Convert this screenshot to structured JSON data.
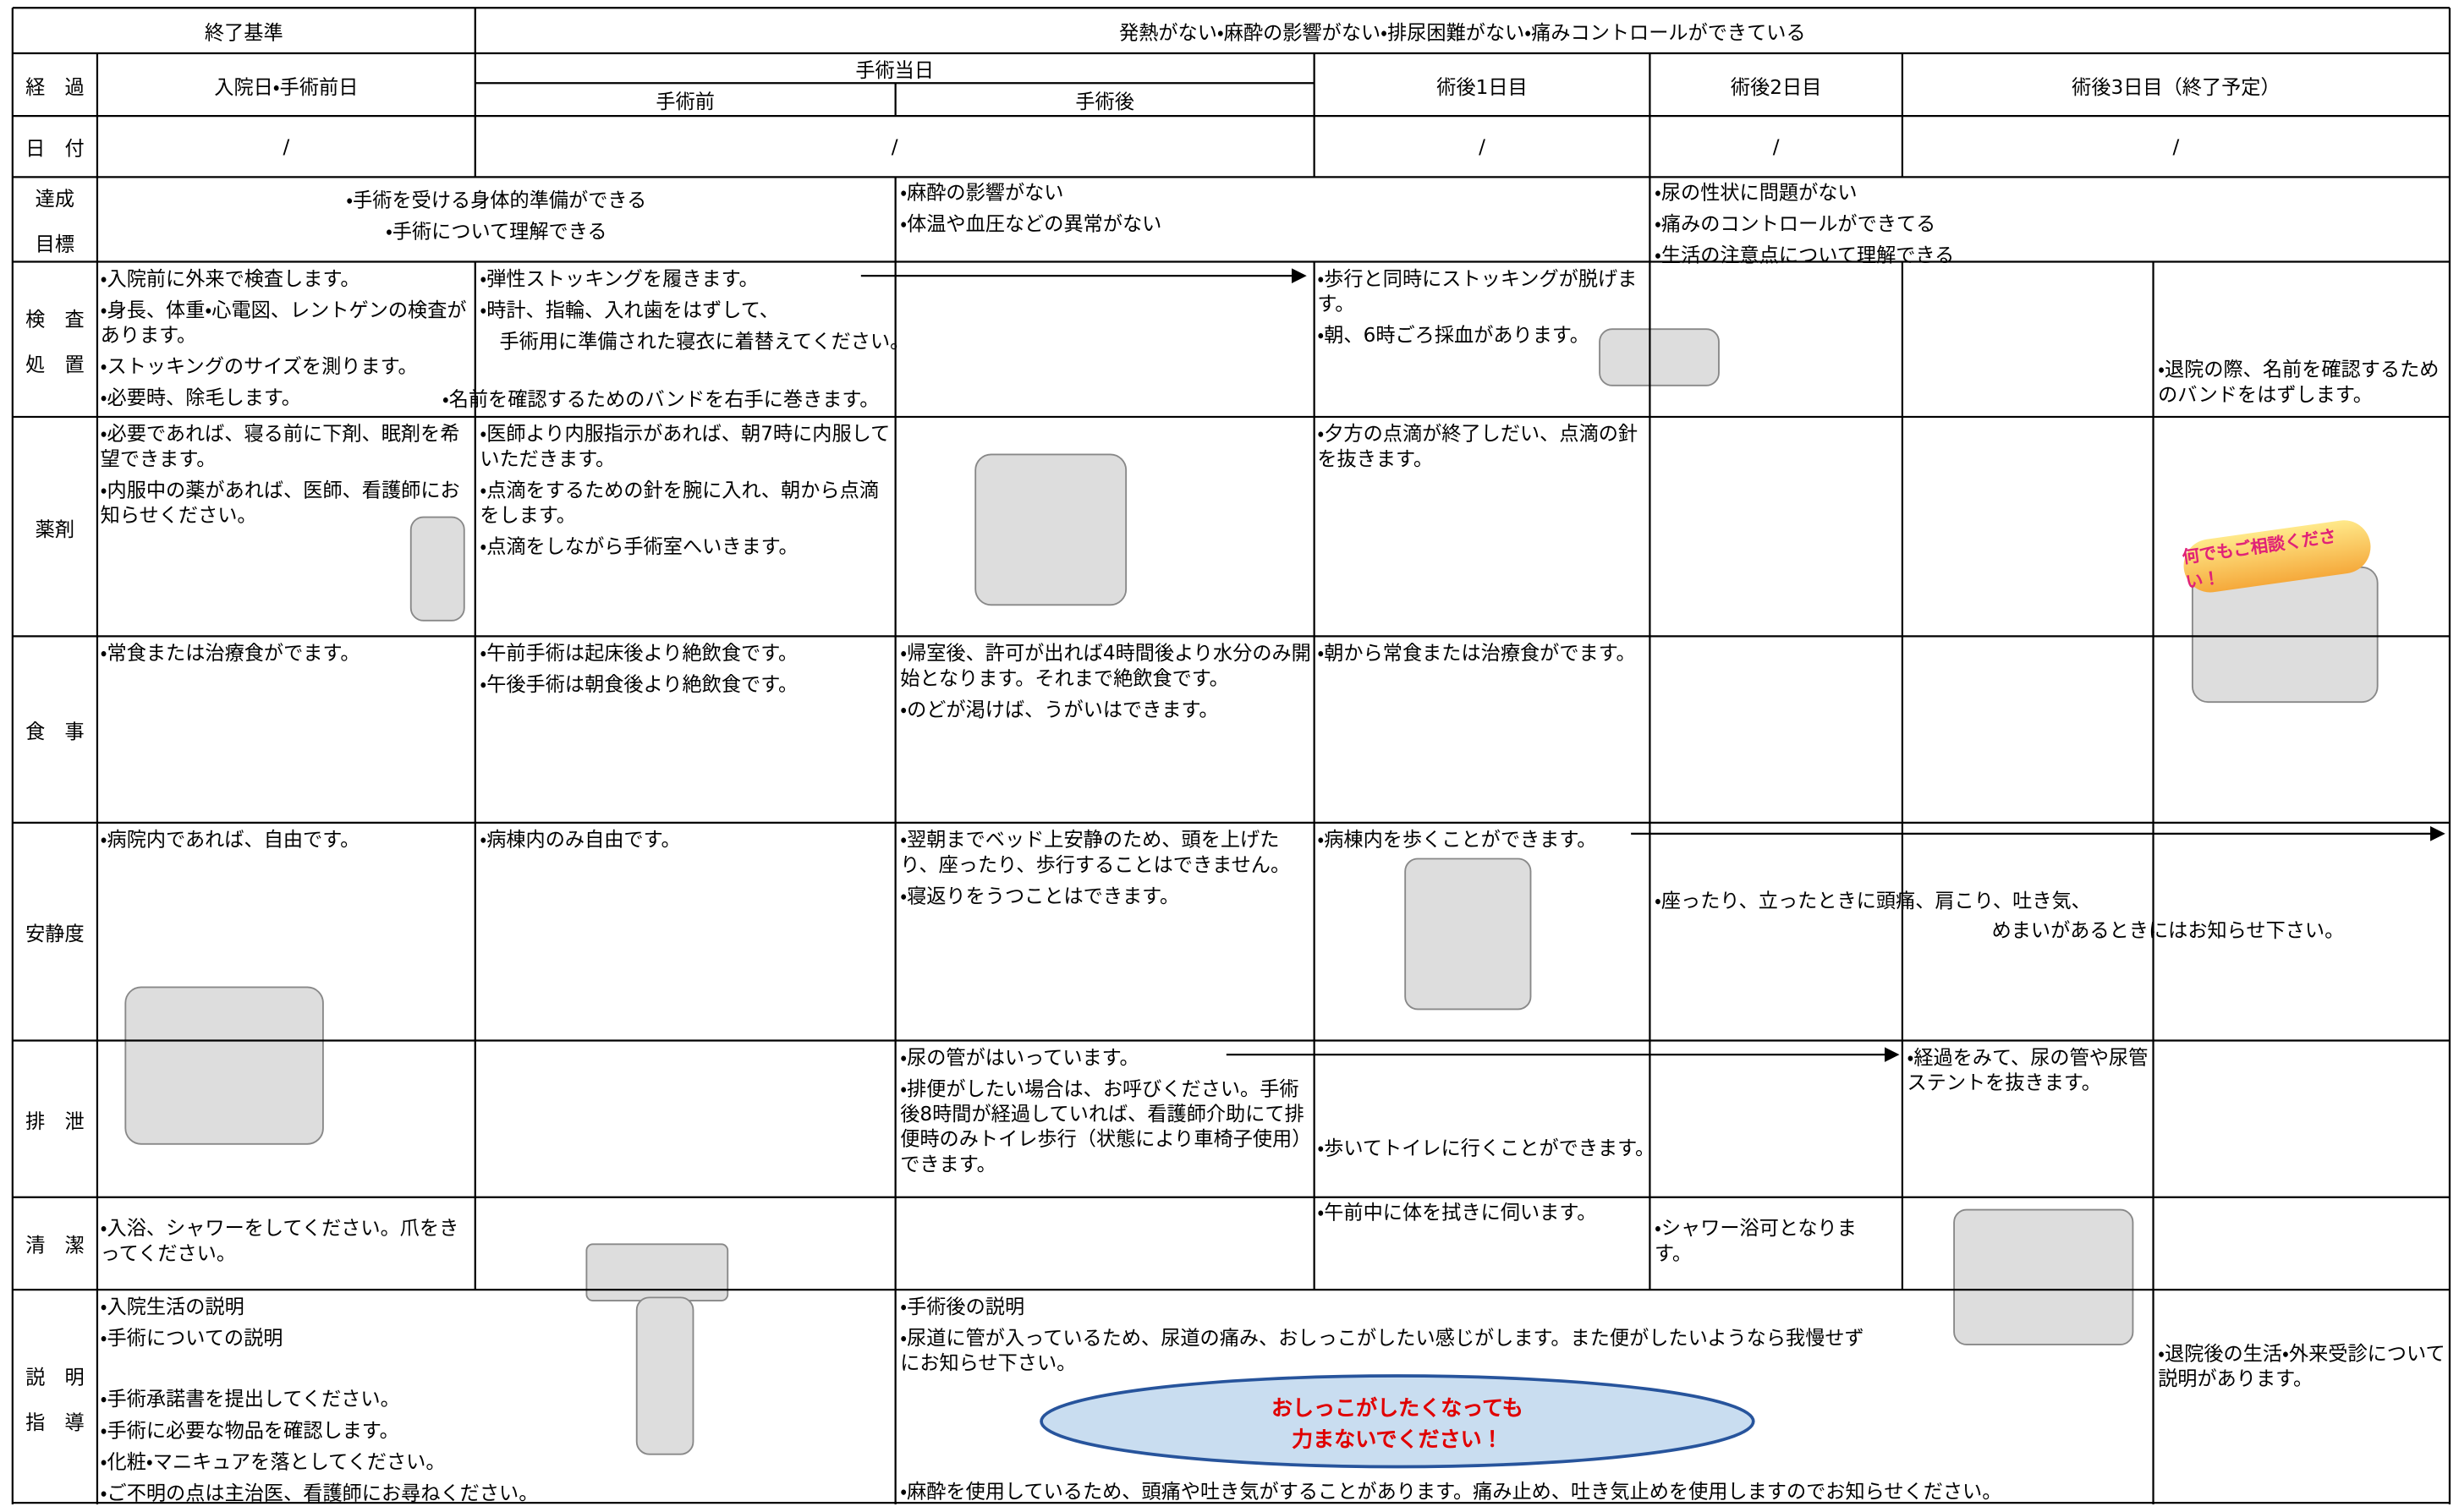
{
  "header": {
    "criteria_label": "終了基準",
    "criteria": "発熱がない・麻酔の影響がない・排尿困難がない・痛みコントロールができている"
  },
  "progress": {
    "label": "経　過",
    "columns": [
      "入院日・手術前日",
      "手術当日",
      "手術前",
      "手術後",
      "術後1日目",
      "術後2日目",
      "術後3日目（終了予定）"
    ]
  },
  "date": {
    "label": "日　付",
    "marks": [
      "/",
      "/",
      "/",
      "/",
      "/"
    ]
  },
  "rows": [
    {
      "label": [
        "達成",
        "目標"
      ],
      "blocks": [
        [
          "・手術を受ける身体的準備ができる",
          "・手術について理解できる"
        ],
        [
          "・麻酔の影響がない",
          "・体温や血圧などの異常がない"
        ],
        [
          "・尿の性状に問題がない",
          "・痛みのコントロールができてる",
          "・生活の注意点について理解できる"
        ]
      ]
    },
    {
      "label": [
        "検　査",
        "処　置"
      ],
      "blocks": [
        [
          "・入院前に外来で検査します。",
          "・身長、体重・心電図、レントゲンの検査があります。",
          "・ストッキングのサイズを測ります。",
          "・必要時、除毛します。"
        ],
        [
          "・弾性ストッキングを履きます。",
          "・時計、指輪、入れ歯をはずして、",
          "　手術用に準備された寝衣に着替えてください。"
        ],
        [
          "・名前を確認するためのバンドを右手に巻きます。"
        ],
        [
          "・歩行と同時にストッキングが脱げます。",
          "・朝、6時ごろ採血があります。"
        ],
        [
          "・退院の際、名前を確認するためのバンドをはずします。"
        ]
      ]
    },
    {
      "label": [
        "薬剤"
      ],
      "blocks": [
        [
          "・必要であれば、寝る前に下剤、眠剤を希望できます。",
          "・内服中の薬があれば、医師、看護師にお知らせください。"
        ],
        [
          "・医師より内服指示があれば、朝7時に内服していただきます。",
          "・点滴をするための針を腕に入れ、朝から点滴をします。",
          "・点滴をしながら手術室へいきます。"
        ],
        [
          "・夕方の点滴が終了しだい、点滴の針を抜きます。"
        ]
      ]
    },
    {
      "label": [
        "食　事"
      ],
      "blocks": [
        [
          "・常食または治療食がでます。"
        ],
        [
          "・午前手術は起床後より絶飲食です。",
          "・午後手術は朝食後より絶飲食です。"
        ],
        [
          "・帰室後、許可が出れば4時間後より水分のみ開始となります。それまで絶飲食です。",
          "・のどが渇けば、うがいはできます。"
        ],
        [
          "・朝から常食または治療食がでます。"
        ]
      ]
    },
    {
      "label": [
        "安静度"
      ],
      "blocks": [
        [
          "・病院内であれば、自由です。"
        ],
        [
          "・病棟内のみ自由です。"
        ],
        [
          "・翌朝までベッド上安静のため、頭を上げたり、座ったり、歩行することはできません。",
          "・寝返りをうつことはできます。"
        ],
        [
          "・病棟内を歩くことができます。"
        ],
        [
          "・座ったり、立ったときに頭痛、肩こり、吐き気、"
        ],
        [
          "めまいがあるときにはお知らせ下さい。"
        ]
      ]
    },
    {
      "label": [
        "排　泄"
      ],
      "blocks": [
        [
          "・尿の管がはいっています。",
          "・排便がしたい場合は、お呼びください。手術後8時間が経過していれば、看護師介助にて排便時のみトイレ歩行（状態により車椅子使用）できます。"
        ],
        [
          "・歩いてトイレに行くことができます。"
        ],
        [
          "・経過をみて、尿の管や尿管ステントを抜きます。"
        ]
      ]
    },
    {
      "label": [
        "清　潔"
      ],
      "blocks": [
        [
          "・入浴、シャワーをしてください。爪をきってください。"
        ],
        [
          "・午前中に体を拭きに伺います。"
        ],
        [
          "・シャワー浴可となります。"
        ]
      ]
    },
    {
      "label": [
        "説　明",
        "指　導"
      ],
      "blocks": [
        [
          "・入院生活の説明",
          "・手術についての説明"
        ],
        [
          "・手術承諾書を提出してください。",
          "・手術に必要な物品を確認します。",
          "・化粧・マニキュアを落としてください。",
          "・ご不明の点は主治医、看護師にお尋ねください。"
        ],
        [
          "・手術後の説明",
          "・尿道に管が入っているため、尿道の痛み、おしっこがしたい感じがします。また便がしたいようなら我慢せずにお知らせ下さい。"
        ],
        [
          "・麻酔を使用しているため、頭痛や吐き気がすることがあります。痛み止め、吐き気止めを使用しますのでお知らせください。"
        ],
        [
          "・退院後の生活・外来受診について説明があります。"
        ]
      ]
    }
  ],
  "callout": [
    "おしっこがしたくなっても",
    "力まないでください！"
  ],
  "speech": "何でもご相談ください！"
}
